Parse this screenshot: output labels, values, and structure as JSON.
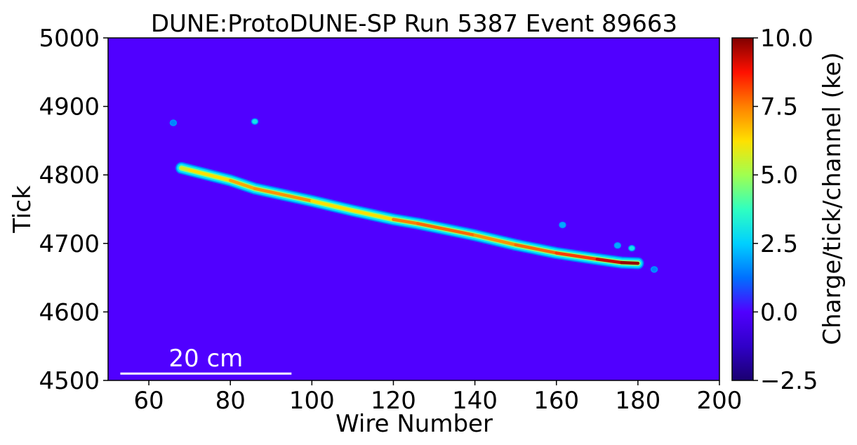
{
  "chart_data": {
    "type": "heatmap",
    "title": "DUNE:ProtoDUNE-SP Run 5387 Event 89663",
    "xlabel": "Wire Number",
    "ylabel": "Tick",
    "xlim": [
      50,
      200
    ],
    "ylim": [
      4500,
      5000
    ],
    "x_ticks": [
      "60",
      "80",
      "100",
      "120",
      "140",
      "160",
      "180",
      "200"
    ],
    "y_ticks": [
      "4500",
      "4600",
      "4700",
      "4800",
      "4900",
      "5000"
    ],
    "colorbar": {
      "label": "Charge/tick/channel (ke)",
      "range": [
        -2.5,
        10.0
      ],
      "ticks": [
        "−2.5",
        "0.0",
        "2.5",
        "5.0",
        "7.5",
        "10.0"
      ],
      "colormap": "jet"
    },
    "background_color": "#5000ff",
    "scale_bar": {
      "label": "20 cm",
      "x_start": 53,
      "x_end": 95,
      "y": 4510
    },
    "track": [
      {
        "wire": 68,
        "tick": 4810,
        "charge": 5.0
      },
      {
        "wire": 70,
        "tick": 4807,
        "charge": 6.5
      },
      {
        "wire": 80,
        "tick": 4792,
        "charge": 6.0
      },
      {
        "wire": 86,
        "tick": 4780,
        "charge": 8.0
      },
      {
        "wire": 100,
        "tick": 4762,
        "charge": 6.5
      },
      {
        "wire": 110,
        "tick": 4748,
        "charge": 6.0
      },
      {
        "wire": 120,
        "tick": 4735,
        "charge": 6.5
      },
      {
        "wire": 126,
        "tick": 4729,
        "charge": 8.5
      },
      {
        "wire": 140,
        "tick": 4712,
        "charge": 7.0
      },
      {
        "wire": 150,
        "tick": 4698,
        "charge": 7.5
      },
      {
        "wire": 160,
        "tick": 4686,
        "charge": 8.0
      },
      {
        "wire": 170,
        "tick": 4677,
        "charge": 8.5
      },
      {
        "wire": 176,
        "tick": 4672,
        "charge": 10.0
      },
      {
        "wire": 180,
        "tick": 4671,
        "charge": 9.5
      }
    ],
    "hits": [
      {
        "wire": 66,
        "tick": 4876,
        "charge": 1.5
      },
      {
        "wire": 86,
        "tick": 4878,
        "charge": 3.0
      },
      {
        "wire": 161.5,
        "tick": 4727,
        "charge": 2.0
      },
      {
        "wire": 175,
        "tick": 4697,
        "charge": 2.0
      },
      {
        "wire": 178.5,
        "tick": 4693,
        "charge": 3.0
      },
      {
        "wire": 184,
        "tick": 4662,
        "charge": 1.5
      }
    ]
  }
}
